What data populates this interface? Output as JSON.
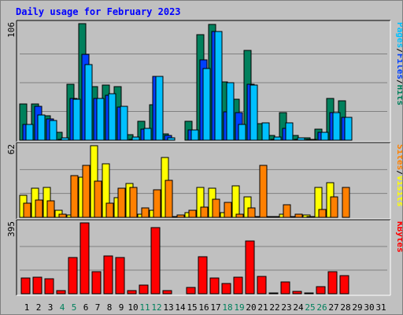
{
  "title": "Daily usage for February 2023",
  "chart_data": [
    {
      "type": "bar",
      "panel": "hits-files-pages",
      "ymax_label": "106",
      "ylim": [
        0,
        106
      ],
      "categories": [
        "1",
        "2",
        "3",
        "4",
        "5",
        "6",
        "7",
        "8",
        "9",
        "10",
        "11",
        "12",
        "13",
        "14",
        "15",
        "16",
        "17",
        "18",
        "19",
        "20",
        "21",
        "22",
        "23",
        "24",
        "25",
        "26",
        "27",
        "28",
        "29",
        "30",
        "31"
      ],
      "series": [
        {
          "name": "Hits",
          "color": "#00805c",
          "values": [
            33,
            33,
            22,
            7,
            51,
            106,
            49,
            50,
            49,
            5,
            17,
            32,
            6,
            0,
            17,
            96,
            105,
            53,
            37,
            82,
            15,
            4,
            25,
            4,
            2,
            10,
            38,
            36,
            0,
            0,
            0
          ]
        },
        {
          "name": "Files",
          "color": "#0040ff",
          "values": [
            14,
            31,
            19,
            1,
            38,
            78,
            38,
            41,
            30,
            1,
            10,
            58,
            4,
            0,
            9,
            73,
            99,
            26,
            25,
            51,
            0,
            1,
            11,
            1,
            1,
            7,
            25,
            21,
            0,
            0,
            0
          ]
        },
        {
          "name": "Pages",
          "color": "#00c0ff",
          "values": [
            14,
            23,
            18,
            2,
            37,
            69,
            38,
            42,
            31,
            3,
            11,
            58,
            2,
            0,
            9,
            65,
            99,
            52,
            14,
            50,
            16,
            3,
            16,
            2,
            1,
            7,
            25,
            21,
            0,
            0,
            0
          ]
        }
      ],
      "legend": [
        "Pages",
        "/",
        "Files",
        "/",
        "Hits"
      ]
    },
    {
      "type": "bar",
      "panel": "visits-sites",
      "ymax_label": "62",
      "ylim": [
        0,
        62
      ],
      "series": [
        {
          "name": "Visits",
          "color": "#ffff00",
          "values": [
            19,
            25,
            26,
            6,
            2,
            35,
            62,
            46,
            17,
            29,
            3,
            6,
            52,
            1,
            4,
            26,
            25,
            4,
            27,
            18,
            1,
            1,
            3,
            1,
            2,
            26,
            30,
            0,
            0,
            0,
            0
          ]
        },
        {
          "name": "Sites",
          "color": "#ff8000",
          "values": [
            12,
            15,
            14,
            3,
            36,
            45,
            31,
            12,
            25,
            26,
            8,
            24,
            32,
            2,
            6,
            9,
            16,
            13,
            3,
            8,
            45,
            1,
            11,
            3,
            1,
            7,
            18,
            26,
            0,
            0,
            0
          ]
        }
      ],
      "legend": [
        "Sites",
        "/",
        "Visits"
      ]
    },
    {
      "type": "bar",
      "panel": "kbytes",
      "ymax_label": "395",
      "ylim": [
        0,
        395
      ],
      "series": [
        {
          "name": "KBytes",
          "color": "#ff0000",
          "values": [
            89,
            94,
            85,
            19,
            204,
            395,
            124,
            212,
            204,
            17,
            47,
            370,
            16,
            0,
            37,
            205,
            88,
            56,
            94,
            294,
            95,
            4,
            66,
            13,
            5,
            41,
            125,
            102,
            0,
            0,
            0
          ]
        }
      ],
      "legend": [
        "KBytes"
      ]
    }
  ],
  "weekend_days": [
    "4",
    "5",
    "11",
    "12",
    "18",
    "19",
    "25",
    "26"
  ],
  "colors": {
    "background": "#c0c0c0",
    "title": "#0000ff",
    "grid": "#808080",
    "weekday_label": "#000000",
    "weekend_label": "#00805c",
    "hits": "#00805c",
    "files": "#0040ff",
    "pages": "#00c0ff",
    "visits": "#ffff00",
    "sites": "#ff8000",
    "kbytes": "#ff0000"
  }
}
